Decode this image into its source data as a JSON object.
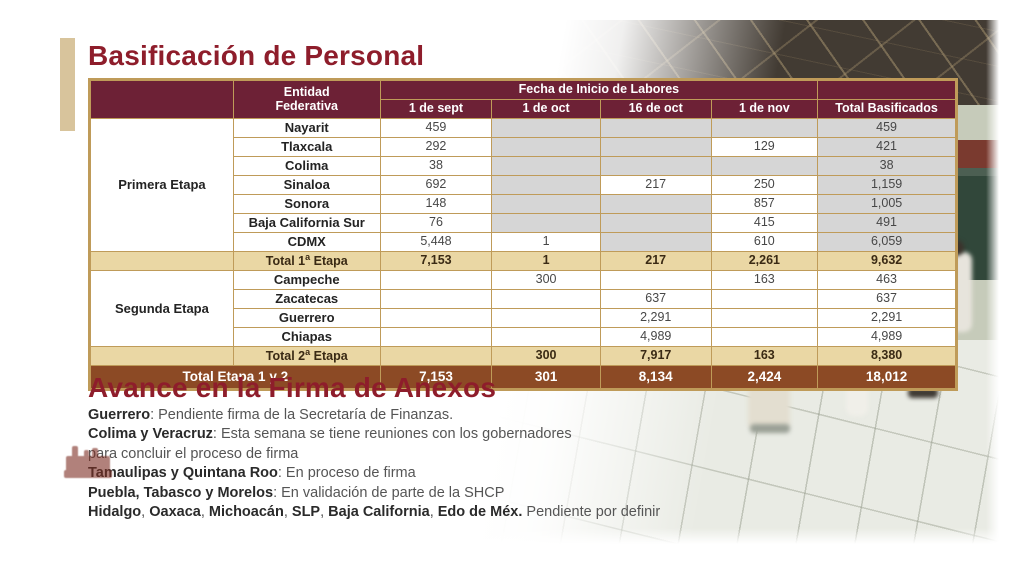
{
  "slide_title": "Basificación de Personal",
  "colors": {
    "title-red": "#8e1d2b",
    "header-maroon": "#6d2136",
    "border-gold": "#bf9b59",
    "total-beige": "#ead7a4",
    "grand-brown": "#8c4a25",
    "cell-gray": "#d6d6d6",
    "accent-tan": "#d8c49c"
  },
  "icons": {
    "watermark": "crowd-emblem-watermark"
  },
  "chart_data": {
    "type": "table",
    "title": "Basificación de Personal",
    "header": {
      "entity_line1": "Entidad",
      "entity_line2": "Federativa",
      "date_group": "Fecha de Inicio de Labores",
      "date_cols": [
        "1 de sept",
        "1 de oct",
        "16 de oct",
        "1 de nov"
      ],
      "total_col": "Total Basificados"
    },
    "stages": [
      {
        "label": "Primera Etapa",
        "rows": [
          {
            "entity": "Nayarit",
            "cells": [
              {
                "v": "459"
              },
              {
                "v": "",
                "g": 1
              },
              {
                "v": "",
                "g": 1
              },
              {
                "v": "",
                "g": 1
              },
              {
                "v": "459",
                "g": 1
              }
            ]
          },
          {
            "entity": "Tlaxcala",
            "cells": [
              {
                "v": "292"
              },
              {
                "v": "",
                "g": 1
              },
              {
                "v": "",
                "g": 1
              },
              {
                "v": "129"
              },
              {
                "v": "421",
                "g": 1
              }
            ]
          },
          {
            "entity": "Colima",
            "cells": [
              {
                "v": "38"
              },
              {
                "v": "",
                "g": 1
              },
              {
                "v": "",
                "g": 1
              },
              {
                "v": "",
                "g": 1
              },
              {
                "v": "38",
                "g": 1
              }
            ]
          },
          {
            "entity": "Sinaloa",
            "cells": [
              {
                "v": "692"
              },
              {
                "v": "",
                "g": 1
              },
              {
                "v": "217"
              },
              {
                "v": "250"
              },
              {
                "v": "1,159",
                "g": 1
              }
            ]
          },
          {
            "entity": "Sonora",
            "cells": [
              {
                "v": "148"
              },
              {
                "v": "",
                "g": 1
              },
              {
                "v": "",
                "g": 1
              },
              {
                "v": "857"
              },
              {
                "v": "1,005",
                "g": 1
              }
            ]
          },
          {
            "entity": "Baja California Sur",
            "cells": [
              {
                "v": "76"
              },
              {
                "v": "",
                "g": 1
              },
              {
                "v": "",
                "g": 1
              },
              {
                "v": "415"
              },
              {
                "v": "491",
                "g": 1
              }
            ]
          },
          {
            "entity": "CDMX",
            "cells": [
              {
                "v": "5,448"
              },
              {
                "v": "1"
              },
              {
                "v": "",
                "g": 1
              },
              {
                "v": "610"
              },
              {
                "v": "6,059",
                "g": 1
              }
            ]
          }
        ],
        "total_row": {
          "label_pre": "Total 1",
          "label_sup": "a",
          "label_post": " Etapa",
          "cells": [
            "7,153",
            "1",
            "217",
            "2,261",
            "9,632"
          ]
        }
      },
      {
        "label": "Segunda Etapa",
        "rows": [
          {
            "entity": "Campeche",
            "cells": [
              {
                "v": ""
              },
              {
                "v": "300"
              },
              {
                "v": ""
              },
              {
                "v": "163"
              },
              {
                "v": "463"
              }
            ]
          },
          {
            "entity": "Zacatecas",
            "cells": [
              {
                "v": ""
              },
              {
                "v": ""
              },
              {
                "v": "637"
              },
              {
                "v": ""
              },
              {
                "v": "637"
              }
            ]
          },
          {
            "entity": "Guerrero",
            "cells": [
              {
                "v": ""
              },
              {
                "v": ""
              },
              {
                "v": "2,291"
              },
              {
                "v": ""
              },
              {
                "v": "2,291"
              }
            ]
          },
          {
            "entity": "Chiapas",
            "cells": [
              {
                "v": ""
              },
              {
                "v": ""
              },
              {
                "v": "4,989"
              },
              {
                "v": ""
              },
              {
                "v": "4,989"
              }
            ]
          }
        ],
        "total_row": {
          "label_pre": "Total 2",
          "label_sup": "a",
          "label_post": " Etapa",
          "cells": [
            "",
            "300",
            "7,917",
            "163",
            "8,380"
          ]
        }
      }
    ],
    "grand_total": {
      "label": "Total Etapa 1 y 2",
      "cells": [
        "7,153",
        "301",
        "8,134",
        "2,424",
        "18,012"
      ]
    }
  },
  "annexes": {
    "title": "Avance en la Firma de Anexos",
    "lines": [
      {
        "segments": [
          {
            "t": "Guerrero",
            "b": true
          },
          {
            "t": ": Pendiente firma de la Secretaría de Finanzas.",
            "b": false
          }
        ]
      },
      {
        "segments": [
          {
            "t": "Colima y Veracruz",
            "b": true
          },
          {
            "t": ": Esta semana se tiene reuniones con los gobernadores",
            "b": false
          }
        ]
      },
      {
        "segments": [
          {
            "t": "para concluir el proceso de firma",
            "b": false
          }
        ]
      },
      {
        "segments": [
          {
            "t": "Tamaulipas y Quintana Roo",
            "b": true
          },
          {
            "t": ": En proceso de firma",
            "b": false
          }
        ]
      },
      {
        "segments": [
          {
            "t": "Puebla, Tabasco y Morelos",
            "b": true
          },
          {
            "t": ": En validación de parte de la SHCP",
            "b": false
          }
        ]
      },
      {
        "segments": [
          {
            "t": "Hidalgo",
            "b": true
          },
          {
            "t": ", ",
            "b": false
          },
          {
            "t": "Oaxaca",
            "b": true
          },
          {
            "t": ", ",
            "b": false
          },
          {
            "t": "Michoacán",
            "b": true
          },
          {
            "t": ", ",
            "b": false
          },
          {
            "t": "SLP",
            "b": true
          },
          {
            "t": ", ",
            "b": false
          },
          {
            "t": "Baja California",
            "b": true
          },
          {
            "t": ", ",
            "b": false
          },
          {
            "t": "Edo de Méx.",
            "b": true
          },
          {
            "t": " Pendiente por definir",
            "b": false
          }
        ]
      }
    ]
  }
}
